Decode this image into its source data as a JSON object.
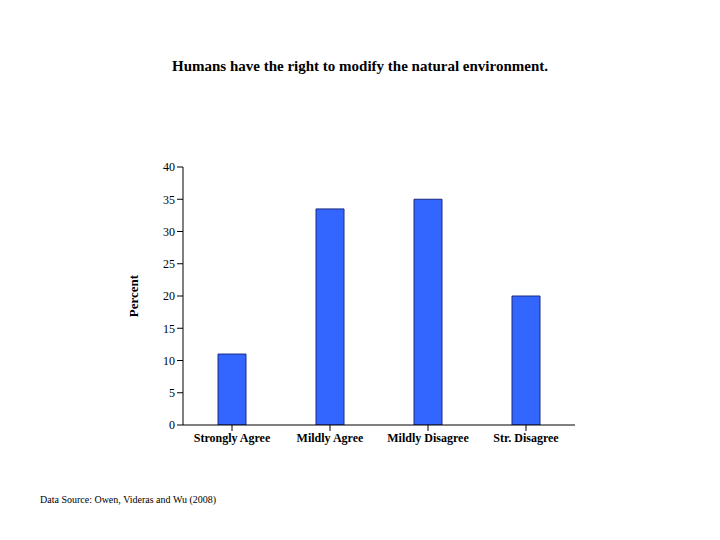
{
  "chart_data": {
    "type": "bar",
    "title": "Humans have the right to modify the natural environment.",
    "categories": [
      "Strongly Agree",
      "Mildly Agree",
      "Mildly Disagree",
      "Str. Disagree"
    ],
    "values": [
      11,
      33.5,
      35,
      20
    ],
    "color": "#3366ff",
    "ylabel": "Percent",
    "ylim": [
      0,
      40
    ],
    "yticks": [
      0,
      5,
      10,
      15,
      20,
      25,
      30,
      35,
      40
    ],
    "grid": false,
    "annotations": [
      "Data Source: Owen, Videras and Wu (2008)"
    ]
  }
}
